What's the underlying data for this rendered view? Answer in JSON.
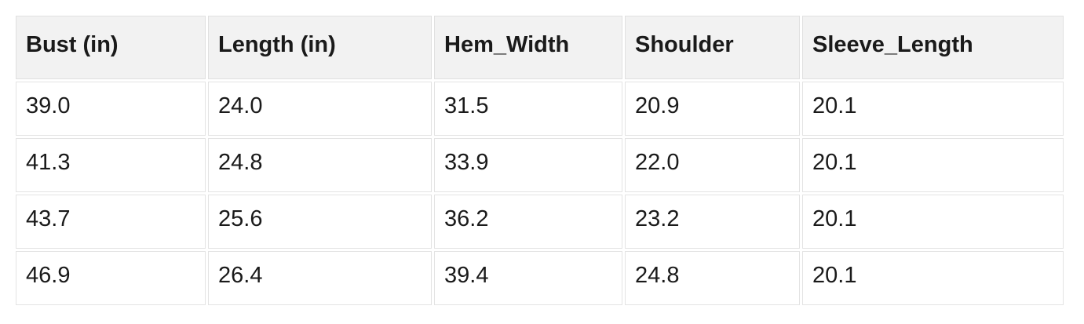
{
  "chart_data": {
    "type": "table",
    "columns": [
      "Bust (in)",
      "Length (in)",
      "Hem_Width",
      "Shoulder",
      "Sleeve_Length"
    ],
    "rows": [
      [
        "39.0",
        "24.0",
        "31.5",
        "20.9",
        "20.1"
      ],
      [
        "41.3",
        "24.8",
        "33.9",
        "22.0",
        "20.1"
      ],
      [
        "43.7",
        "25.6",
        "36.2",
        "23.2",
        "20.1"
      ],
      [
        "46.9",
        "26.4",
        "39.4",
        "24.8",
        "20.1"
      ]
    ]
  },
  "colors": {
    "header_background": "#f2f2f2",
    "cell_background": "#ffffff",
    "border": "#e0e0e0",
    "text": "#1a1a1a",
    "page_background": "#ffffff"
  }
}
